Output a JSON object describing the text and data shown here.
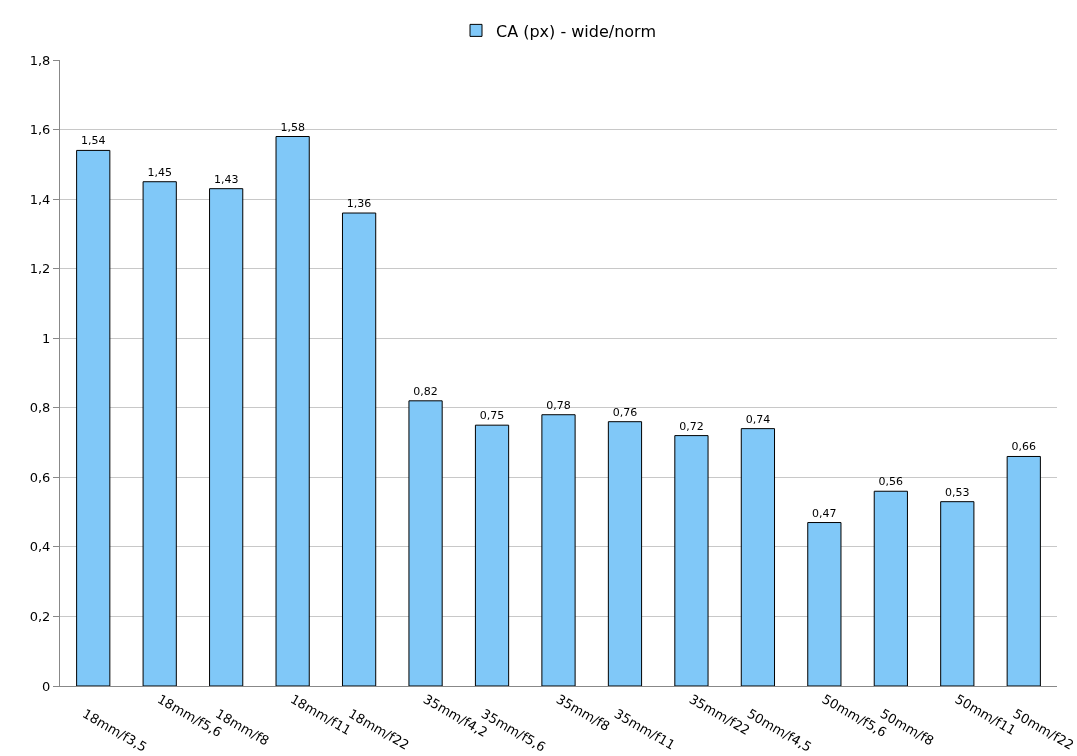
{
  "chart_data": {
    "type": "bar",
    "categories": [
      "18mm/f3,5",
      "18mm/f5,6",
      "18mm/f8",
      "18mm/f11",
      "18mm/f22",
      "35mm/f4,2",
      "35mm/f5,6",
      "35mm/f8",
      "35mm/f11",
      "35mm/f22",
      "50mm/f4,5",
      "50mm/f5,6",
      "50mm/f8",
      "50mm/f11",
      "50mm/f22"
    ],
    "series": [
      {
        "name": "CA (px) - wide/norm",
        "color": "#80c8f8",
        "values": [
          1.54,
          1.45,
          1.43,
          1.58,
          1.36,
          0.82,
          0.75,
          0.78,
          0.76,
          0.72,
          0.74,
          0.47,
          0.56,
          0.53,
          0.66
        ],
        "value_labels": [
          "1,54",
          "1,45",
          "1,43",
          "1,58",
          "1,36",
          "0,82",
          "0,75",
          "0,78",
          "0,76",
          "0,72",
          "0,74",
          "0,47",
          "0,56",
          "0,53",
          "0,66"
        ]
      }
    ],
    "ylim": [
      0,
      1.8
    ],
    "yticks": [
      0,
      {
        "value": 0.2,
        "label": "0,2"
      },
      {
        "value": 0.4,
        "label": "0,4"
      },
      {
        "value": 0.6,
        "label": "0,6"
      },
      {
        "value": 0.8,
        "label": "0,8"
      },
      1,
      {
        "value": 1.2,
        "label": "1,2"
      },
      {
        "value": 1.4,
        "label": "1,4"
      },
      {
        "value": 1.6,
        "label": "1,6"
      },
      {
        "value": 1.8,
        "label": "1,8"
      }
    ],
    "grid": "y",
    "legend": "top"
  }
}
